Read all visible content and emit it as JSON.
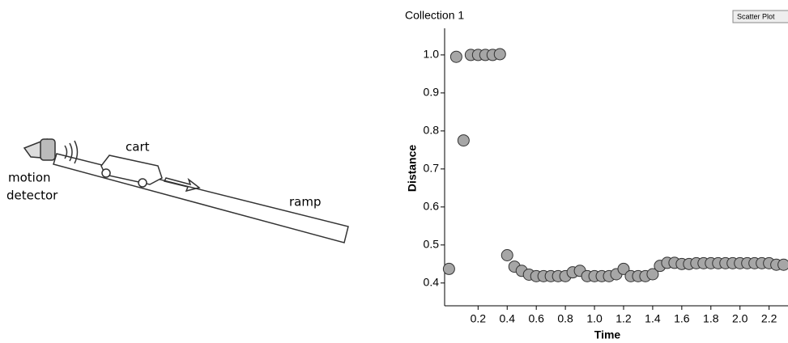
{
  "diagram": {
    "labels": [
      "cart",
      "motion",
      "detector",
      "ramp"
    ]
  },
  "button": "Scatter Plot",
  "chart_data": {
    "type": "scatter",
    "title": "Collection 1",
    "x_label": "Time",
    "y_label": "Distance",
    "x": [
      0,
      0.05,
      0.1,
      0.15,
      0.2,
      0.25,
      0.3,
      0.35,
      0.4,
      0.45,
      0.5,
      0.55,
      0.6,
      0.65,
      0.7,
      0.75,
      0.8,
      0.85,
      0.9,
      0.95,
      1.0,
      1.05,
      1.1,
      1.15,
      1.2,
      1.25,
      1.3,
      1.35,
      1.4,
      1.45,
      1.5,
      1.55,
      1.6,
      1.65,
      1.7,
      1.75,
      1.8,
      1.85,
      1.9,
      1.95,
      2.0,
      2.05,
      2.1,
      2.15,
      2.2,
      2.25,
      2.3
    ],
    "values": [
      0.437,
      0.995,
      0.775,
      1.0,
      1.0,
      1.0,
      1.0,
      1.002,
      0.473,
      0.443,
      0.432,
      0.422,
      0.418,
      0.418,
      0.418,
      0.418,
      0.418,
      0.428,
      0.432,
      0.418,
      0.418,
      0.418,
      0.418,
      0.423,
      0.437,
      0.418,
      0.418,
      0.418,
      0.423,
      0.445,
      0.453,
      0.453,
      0.45,
      0.45,
      0.452,
      0.452,
      0.452,
      0.452,
      0.452,
      0.452,
      0.452,
      0.452,
      0.452,
      0.452,
      0.452,
      0.448,
      0.448
    ],
    "color": "#a6a6a6",
    "xlim": [
      -0.03,
      2.33
    ],
    "xticks": [
      0.2,
      0.4,
      0.6,
      0.8,
      {
        "value": 1,
        "label": "1.0"
      },
      1.2,
      1.4,
      1.6,
      1.8,
      {
        "value": 2,
        "label": "2.0"
      },
      2.2
    ],
    "ylim": [
      0.34,
      1.07
    ],
    "yticks": [
      0.4,
      0.5,
      0.6,
      0.7,
      0.8,
      0.9,
      {
        "value": 1,
        "label": "1.0"
      }
    ]
  }
}
